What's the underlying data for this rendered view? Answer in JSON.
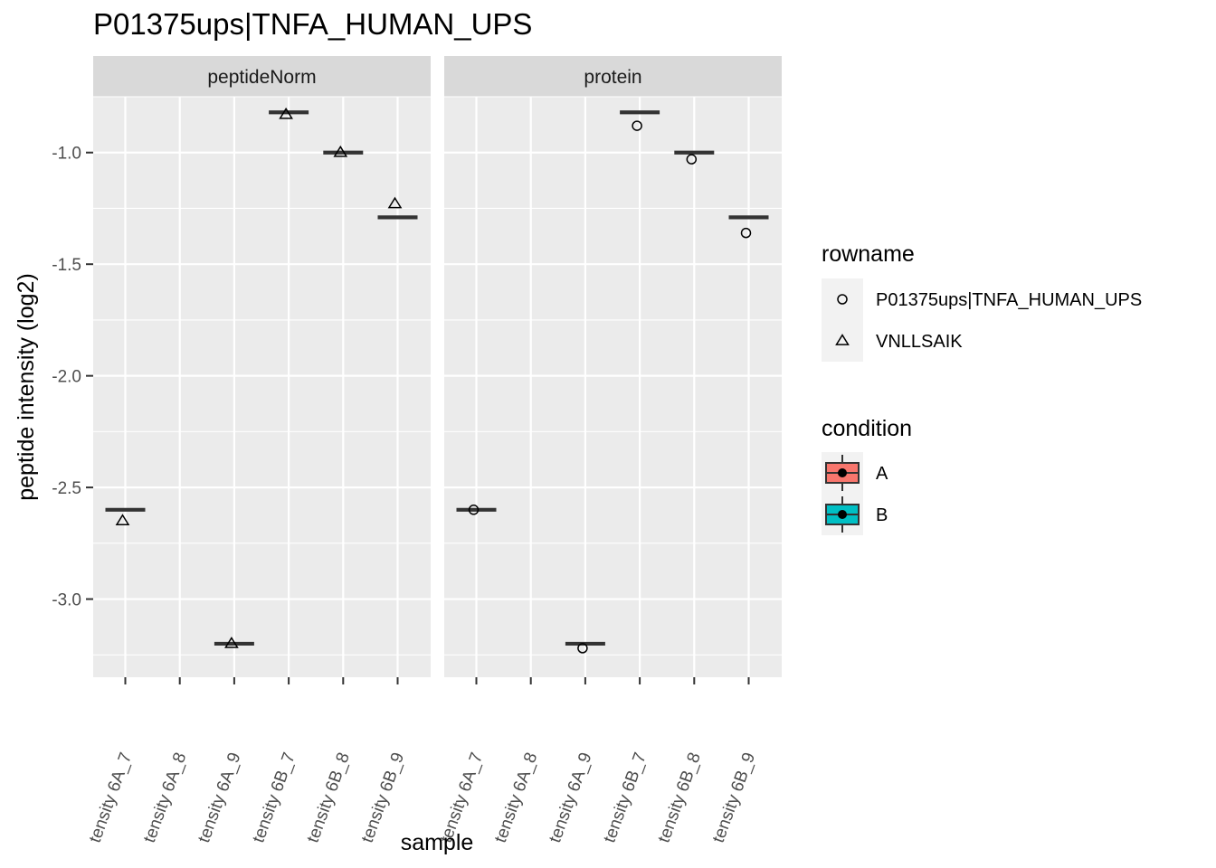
{
  "chart_data": {
    "type": "box",
    "title": "P01375ups|TNFA_HUMAN_UPS",
    "xlabel": "sample",
    "ylabel": "peptide intensity (log2)",
    "ylim": [
      -3.35,
      -0.75
    ],
    "y_ticks": [
      -1.0,
      -1.5,
      -2.0,
      -2.5,
      -3.0
    ],
    "y_tick_labels": [
      "-1.0",
      "-1.5",
      "-2.0",
      "-2.5",
      "-3.0"
    ],
    "grid": true,
    "categories": [
      "tensity 6A_7",
      "tensity 6A_8",
      "tensity 6A_9",
      "tensity 6B_7",
      "tensity 6B_8",
      "tensity 6B_9"
    ],
    "sample_condition": [
      "A",
      "A",
      "A",
      "B",
      "B",
      "B"
    ],
    "facets": [
      {
        "name": "peptideNorm",
        "median": [
          -2.6,
          null,
          -3.2,
          -0.82,
          -1.0,
          -1.29
        ],
        "points": [
          {
            "series": "VNLLSAIK",
            "x": "tensity 6A_7",
            "y": -2.65
          },
          {
            "series": "VNLLSAIK",
            "x": "tensity 6A_9",
            "y": -3.2
          },
          {
            "series": "VNLLSAIK",
            "x": "tensity 6B_7",
            "y": -0.83
          },
          {
            "series": "VNLLSAIK",
            "x": "tensity 6B_8",
            "y": -1.0
          },
          {
            "series": "VNLLSAIK",
            "x": "tensity 6B_9",
            "y": -1.23
          }
        ]
      },
      {
        "name": "protein",
        "median": [
          -2.6,
          null,
          -3.2,
          -0.82,
          -1.0,
          -1.29
        ],
        "points": [
          {
            "series": "P01375ups|TNFA_HUMAN_UPS",
            "x": "tensity 6A_7",
            "y": -2.6
          },
          {
            "series": "P01375ups|TNFA_HUMAN_UPS",
            "x": "tensity 6A_9",
            "y": -3.22
          },
          {
            "series": "P01375ups|TNFA_HUMAN_UPS",
            "x": "tensity 6B_7",
            "y": -0.88
          },
          {
            "series": "P01375ups|TNFA_HUMAN_UPS",
            "x": "tensity 6B_8",
            "y": -1.03
          },
          {
            "series": "P01375ups|TNFA_HUMAN_UPS",
            "x": "tensity 6B_9",
            "y": -1.36
          }
        ]
      }
    ],
    "legend": {
      "placement": "right",
      "rowname": {
        "title": "rowname",
        "items": [
          {
            "label": "P01375ups|TNFA_HUMAN_UPS",
            "shape": "circle"
          },
          {
            "label": "VNLLSAIK",
            "shape": "triangle"
          }
        ]
      },
      "condition": {
        "title": "condition",
        "items": [
          {
            "label": "A",
            "color": "#F8766D"
          },
          {
            "label": "B",
            "color": "#00BFC4"
          }
        ]
      }
    },
    "colors": {
      "panel_bg": "#EBEBEB",
      "strip_bg": "#D9D9D9",
      "grid": "#FFFFFF",
      "median": "#333333"
    }
  }
}
